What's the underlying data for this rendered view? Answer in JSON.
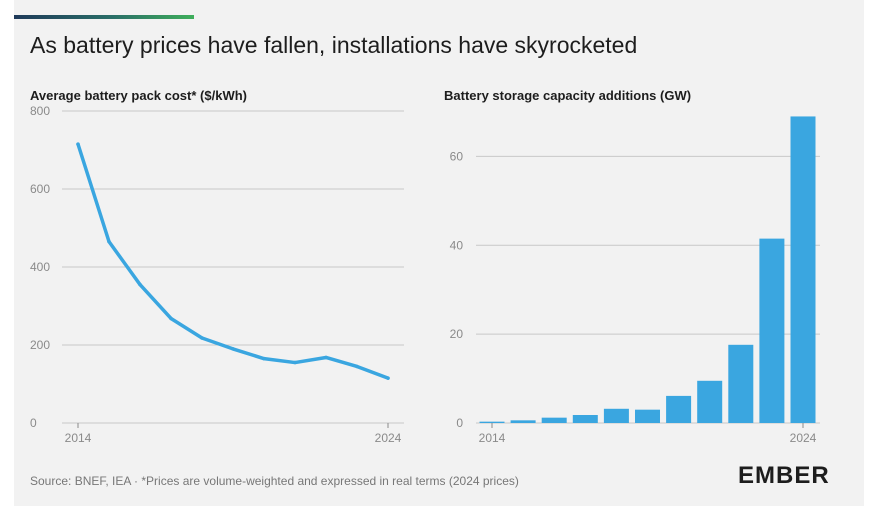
{
  "header": {
    "title": "As battery prices have fallen, installations have skyrocketed"
  },
  "footer": {
    "source": "Source: BNEF, IEA · *Prices are volume-weighted and expressed in real terms (2024 prices)",
    "logo_text": "EMBER"
  },
  "colors": {
    "series": "#3aa6e0",
    "grid": "#c8c8c8",
    "axis_text": "#8a8a8a",
    "background": "#f2f2f2"
  },
  "chart_data": [
    {
      "type": "line",
      "title": "Average battery pack cost* ($/kWh)",
      "x": [
        2014,
        2015,
        2016,
        2017,
        2018,
        2019,
        2020,
        2021,
        2022,
        2023,
        2024
      ],
      "values": [
        715,
        465,
        355,
        268,
        218,
        190,
        165,
        155,
        168,
        145,
        115
      ],
      "xlim": [
        2014,
        2024
      ],
      "ylim": [
        0,
        800
      ],
      "yticks": [
        "0",
        "200",
        "400",
        "600",
        "800"
      ],
      "xticks": [
        "2014",
        "2024"
      ],
      "grid": true
    },
    {
      "type": "bar",
      "title": "Battery storage capacity additions (GW)",
      "x": [
        2014,
        2015,
        2016,
        2017,
        2018,
        2019,
        2020,
        2021,
        2022,
        2023,
        2024
      ],
      "values": [
        0.3,
        0.6,
        1.2,
        1.8,
        3.2,
        3.0,
        6.1,
        9.5,
        17.6,
        41.5,
        69
      ],
      "ylim": [
        0,
        70
      ],
      "yticks": [
        "0",
        "20",
        "40",
        "60"
      ],
      "xticks": [
        "2014",
        "2024"
      ],
      "grid": true
    }
  ]
}
